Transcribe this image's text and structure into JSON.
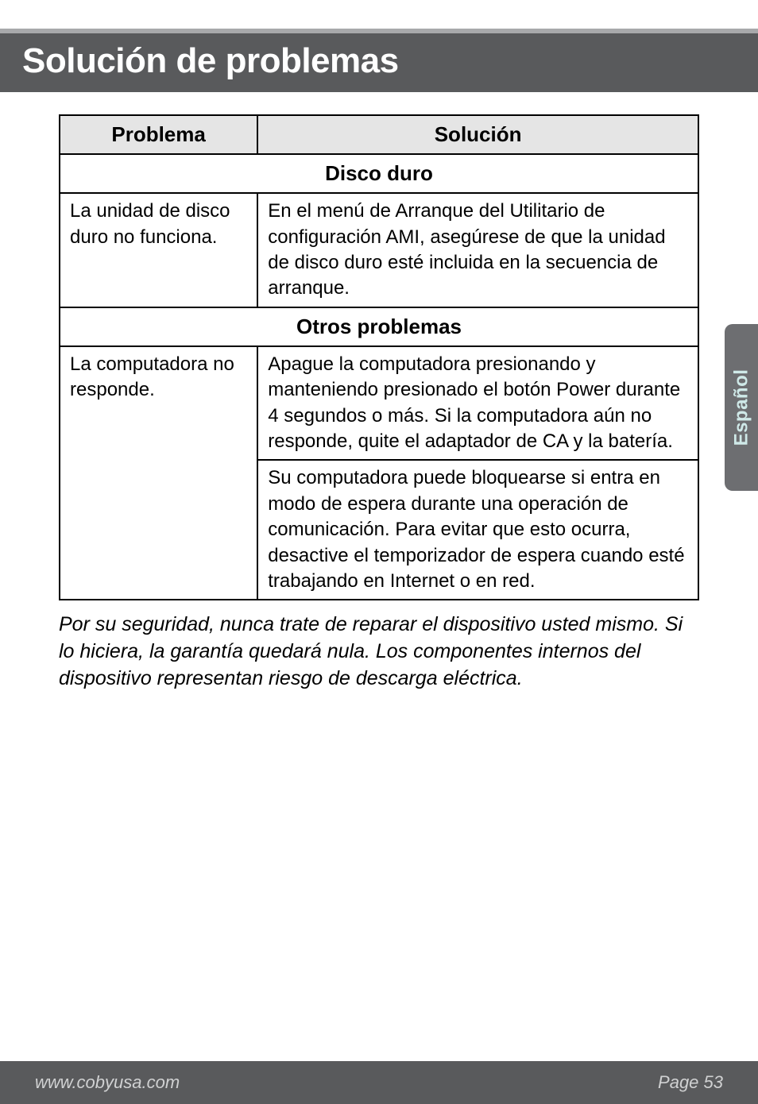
{
  "header": {
    "title": "Solución de problemas"
  },
  "table": {
    "columns": {
      "problem": "Problema",
      "solution": "Solución"
    },
    "sections": [
      {
        "heading": "Disco duro",
        "rows": [
          {
            "problem": "La unidad de disco duro no funciona.",
            "solution": "En el menú de Arranque del Utilitario de configuración AMI, asegúrese de que la unidad de disco duro esté incluida en la secuencia de arranque."
          }
        ]
      },
      {
        "heading": "Otros problemas",
        "rows": [
          {
            "problem": "La computadora no responde.",
            "solution": "Apague la computadora presionando y manteniendo presionado el botón Power durante 4 segundos o más. Si la computadora aún no responde, quite el adaptador de CA y la batería.",
            "solution2": "Su computadora puede bloquearse si entra en modo de espera durante una operación de comunicación. Para evitar que esto ocurra, desactive el temporizador de espera cuando esté trabajando en Internet o en red."
          }
        ]
      }
    ]
  },
  "note": "Por su seguridad, nunca trate de reparar el dispositivo usted mismo. Si lo hiciera, la garantía quedará nula. Los componentes internos del dispositivo representan riesgo de descarga eléctrica.",
  "sideTab": "Español",
  "footer": {
    "left": "www.cobyusa.com",
    "right": "Page 53"
  },
  "colors": {
    "header_bg": "#595a5c",
    "header_accent": "#a8a9ab",
    "th_bg": "#e5e5e5",
    "tab_bg": "#6d6e71",
    "tab_text": "#cfe9e8",
    "footer_text": "#d0d1d2"
  }
}
